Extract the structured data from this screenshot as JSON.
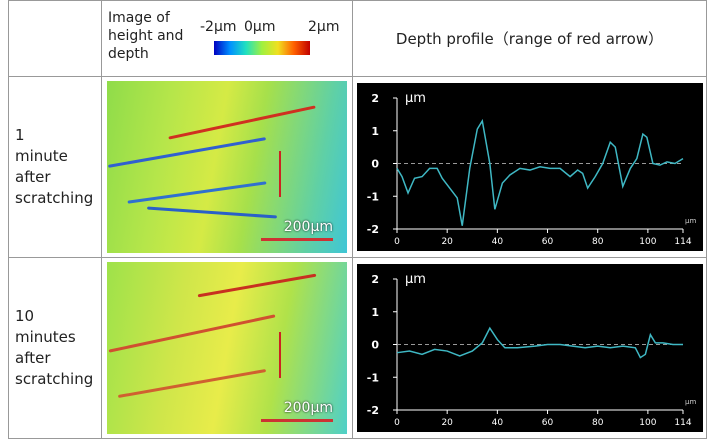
{
  "table": {
    "header": {
      "image": "Image of height and depth",
      "scale_labels": [
        "-2µm",
        "0µm",
        "2µm"
      ],
      "profile": "Depth profile（range of red arrow）"
    },
    "rows": [
      {
        "label": "1 minute after scratching",
        "scale_bar": "200µm",
        "profile": {
          "type": "line",
          "y_unit": "µm",
          "x_unit": "µm",
          "color": "#3fb8c4",
          "xlim": [
            0,
            114
          ],
          "ylim": [
            -2,
            2
          ],
          "xticks": [
            0,
            20,
            40,
            60,
            80,
            100,
            114
          ],
          "yticks": [
            -2,
            -1,
            0,
            1,
            2
          ],
          "reference_line": 0,
          "x": [
            0,
            2,
            4.4,
            7,
            10,
            13,
            16,
            18,
            21,
            24,
            26,
            29,
            32,
            34,
            37,
            39,
            42,
            45,
            49,
            53,
            57,
            61,
            65,
            69,
            72,
            74,
            76,
            79,
            82,
            85,
            87,
            90,
            93,
            95.6,
            98,
            99.6,
            102,
            104.8,
            107.6,
            110.8,
            114
          ],
          "values": [
            -0.15,
            -0.4,
            -0.9,
            -0.45,
            -0.4,
            -0.15,
            -0.15,
            -0.45,
            -0.75,
            -1.05,
            -1.9,
            -0.15,
            1.05,
            1.3,
            0,
            -1.4,
            -0.6,
            -0.35,
            -0.15,
            -0.2,
            -0.1,
            -0.15,
            -0.15,
            -0.4,
            -0.2,
            -0.3,
            -0.75,
            -0.4,
            0,
            0.65,
            0.5,
            -0.7,
            -0.15,
            0.15,
            0.9,
            0.8,
            0,
            -0.05,
            0.05,
            0,
            0.15
          ]
        }
      },
      {
        "label": "10 minutes after scratching",
        "scale_bar": "200µm",
        "profile": {
          "type": "line",
          "y_unit": "µm",
          "x_unit": "µm",
          "color": "#3fb8c4",
          "xlim": [
            0,
            114
          ],
          "ylim": [
            -2,
            2
          ],
          "xticks": [
            0,
            20,
            40,
            60,
            80,
            100,
            114
          ],
          "yticks": [
            -2,
            -1,
            0,
            1,
            2
          ],
          "reference_line": 0,
          "x": [
            0,
            5,
            10,
            15,
            20,
            25,
            30,
            34,
            37,
            40,
            43,
            48,
            55,
            60,
            65,
            70,
            75,
            80,
            85,
            90,
            95,
            97,
            99,
            101,
            103,
            106,
            110,
            114
          ],
          "values": [
            -0.25,
            -0.2,
            -0.3,
            -0.15,
            -0.2,
            -0.35,
            -0.2,
            0.05,
            0.5,
            0.15,
            -0.1,
            -0.1,
            -0.05,
            0,
            0,
            -0.05,
            -0.1,
            -0.05,
            -0.1,
            -0.05,
            -0.1,
            -0.4,
            -0.3,
            0.3,
            0.05,
            0.05,
            0,
            0
          ]
        }
      }
    ]
  }
}
